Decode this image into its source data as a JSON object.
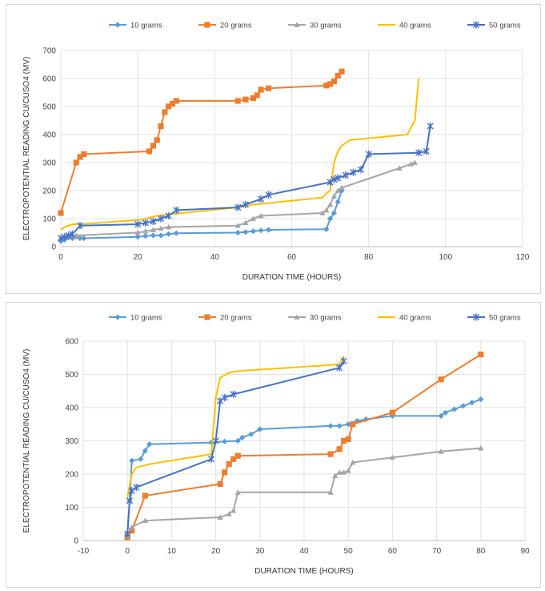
{
  "colors": {
    "10": "#5b9bd5",
    "20": "#ed7d31",
    "30": "#a5a5a5",
    "40": "#ffc000",
    "50": "#4472c4"
  },
  "chart_data": [
    {
      "type": "line",
      "xlabel": "DURATION TIME (HOURS)",
      "ylabel": "ELECTROPOTENTIAL READING CU/CUSO4 (MV)",
      "xlim": [
        0,
        120
      ],
      "ylim": [
        0,
        700
      ],
      "xticks": [
        0,
        20,
        40,
        60,
        80,
        100,
        120
      ],
      "yticks": [
        0,
        100,
        200,
        300,
        400,
        500,
        600,
        700
      ],
      "grid": true,
      "legend": "top",
      "series": [
        {
          "name": "10 grams",
          "marker": "diamond",
          "points": [
            [
              0,
              20
            ],
            [
              1,
              25
            ],
            [
              3,
              30
            ],
            [
              5,
              30
            ],
            [
              6,
              30
            ],
            [
              20,
              35
            ],
            [
              22,
              38
            ],
            [
              24,
              40
            ],
            [
              26,
              40
            ],
            [
              28,
              45
            ],
            [
              30,
              48
            ],
            [
              46,
              50
            ],
            [
              48,
              52
            ],
            [
              50,
              55
            ],
            [
              52,
              58
            ],
            [
              54,
              60
            ],
            [
              69,
              62
            ],
            [
              70,
              100
            ],
            [
              71,
              120
            ],
            [
              72,
              160
            ],
            [
              73,
              200
            ]
          ]
        },
        {
          "name": "20 grams",
          "marker": "square",
          "points": [
            [
              0,
              120
            ],
            [
              4,
              300
            ],
            [
              5,
              320
            ],
            [
              6,
              330
            ],
            [
              23,
              340
            ],
            [
              24,
              360
            ],
            [
              25,
              380
            ],
            [
              26,
              430
            ],
            [
              27,
              480
            ],
            [
              28,
              500
            ],
            [
              29,
              510
            ],
            [
              30,
              520
            ],
            [
              46,
              520
            ],
            [
              48,
              525
            ],
            [
              50,
              530
            ],
            [
              51,
              540
            ],
            [
              52,
              560
            ],
            [
              54,
              565
            ],
            [
              69,
              575
            ],
            [
              70,
              580
            ],
            [
              71,
              590
            ],
            [
              72,
              610
            ],
            [
              73,
              625
            ]
          ]
        },
        {
          "name": "30 grams",
          "marker": "triangle",
          "points": [
            [
              0,
              30
            ],
            [
              2,
              35
            ],
            [
              4,
              40
            ],
            [
              20,
              50
            ],
            [
              22,
              55
            ],
            [
              24,
              60
            ],
            [
              26,
              65
            ],
            [
              28,
              70
            ],
            [
              46,
              75
            ],
            [
              48,
              85
            ],
            [
              50,
              100
            ],
            [
              52,
              110
            ],
            [
              68,
              120
            ],
            [
              69,
              130
            ],
            [
              70,
              150
            ],
            [
              71,
              180
            ],
            [
              72,
              200
            ],
            [
              73,
              210
            ],
            [
              88,
              280
            ],
            [
              91,
              295
            ],
            [
              92,
              300
            ]
          ]
        },
        {
          "name": "40 grams",
          "marker": "none",
          "points": [
            [
              0,
              60
            ],
            [
              1,
              70
            ],
            [
              3,
              80
            ],
            [
              5,
              80
            ],
            [
              20,
              95
            ],
            [
              22,
              100
            ],
            [
              25,
              110
            ],
            [
              28,
              115
            ],
            [
              46,
              140
            ],
            [
              50,
              150
            ],
            [
              68,
              175
            ],
            [
              69,
              190
            ],
            [
              70,
              200
            ],
            [
              71,
              300
            ],
            [
              72,
              340
            ],
            [
              73,
              360
            ],
            [
              75,
              380
            ],
            [
              90,
              400
            ],
            [
              92,
              450
            ],
            [
              93,
              600
            ]
          ]
        },
        {
          "name": "50 grams",
          "marker": "star",
          "points": [
            [
              0,
              30
            ],
            [
              1,
              35
            ],
            [
              2,
              40
            ],
            [
              3,
              45
            ],
            [
              5,
              75
            ],
            [
              20,
              80
            ],
            [
              22,
              85
            ],
            [
              24,
              90
            ],
            [
              26,
              100
            ],
            [
              28,
              110
            ],
            [
              30,
              130
            ],
            [
              46,
              140
            ],
            [
              48,
              150
            ],
            [
              52,
              170
            ],
            [
              54,
              185
            ],
            [
              70,
              230
            ],
            [
              71,
              240
            ],
            [
              72,
              245
            ],
            [
              74,
              255
            ],
            [
              76,
              265
            ],
            [
              78,
              275
            ],
            [
              80,
              330
            ],
            [
              93,
              335
            ],
            [
              95,
              340
            ],
            [
              96,
              430
            ]
          ]
        }
      ]
    },
    {
      "type": "line",
      "xlabel": "DURATION TIME (HOURS)",
      "ylabel": "ELECTROPOTENTIAL READING CU/CUSO4 (MV)",
      "xlim": [
        -10,
        90
      ],
      "ylim": [
        0,
        600
      ],
      "xticks": [
        -10,
        0,
        10,
        20,
        30,
        40,
        50,
        60,
        70,
        80,
        90
      ],
      "yticks": [
        0,
        100,
        200,
        300,
        400,
        500,
        600
      ],
      "grid": true,
      "legend": "top",
      "series": [
        {
          "name": "10 grams",
          "marker": "diamond",
          "points": [
            [
              0,
              20
            ],
            [
              0.5,
              120
            ],
            [
              1,
              240
            ],
            [
              3,
              245
            ],
            [
              4,
              270
            ],
            [
              5,
              290
            ],
            [
              19,
              295
            ],
            [
              22,
              298
            ],
            [
              25,
              300
            ],
            [
              26,
              310
            ],
            [
              28,
              320
            ],
            [
              30,
              335
            ],
            [
              46,
              345
            ],
            [
              48,
              345
            ],
            [
              50,
              350
            ],
            [
              52,
              360
            ],
            [
              54,
              365
            ],
            [
              60,
              375
            ],
            [
              71,
              375
            ],
            [
              72,
              385
            ],
            [
              74,
              395
            ],
            [
              76,
              405
            ],
            [
              78,
              415
            ],
            [
              80,
              425
            ]
          ]
        },
        {
          "name": "20 grams",
          "marker": "square",
          "points": [
            [
              0,
              10
            ],
            [
              1,
              30
            ],
            [
              4,
              135
            ],
            [
              21,
              170
            ],
            [
              22,
              205
            ],
            [
              23,
              230
            ],
            [
              24,
              245
            ],
            [
              25,
              255
            ],
            [
              46,
              260
            ],
            [
              48,
              275
            ],
            [
              49,
              300
            ],
            [
              50,
              305
            ],
            [
              51,
              350
            ],
            [
              60,
              385
            ],
            [
              71,
              485
            ],
            [
              80,
              560
            ]
          ]
        },
        {
          "name": "30 grams",
          "marker": "triangle",
          "points": [
            [
              0,
              15
            ],
            [
              1,
              40
            ],
            [
              4,
              60
            ],
            [
              21,
              70
            ],
            [
              23,
              80
            ],
            [
              24,
              90
            ],
            [
              25,
              145
            ],
            [
              46,
              145
            ],
            [
              47,
              195
            ],
            [
              48,
              205
            ],
            [
              49,
              205
            ],
            [
              50,
              210
            ],
            [
              51,
              235
            ],
            [
              60,
              250
            ],
            [
              71,
              268
            ],
            [
              80,
              278
            ]
          ]
        },
        {
          "name": "40 grams",
          "marker": "none",
          "points": [
            [
              0,
              130
            ],
            [
              1,
              200
            ],
            [
              2,
              220
            ],
            [
              5,
              230
            ],
            [
              19,
              260
            ],
            [
              20,
              430
            ],
            [
              21,
              490
            ],
            [
              23,
              505
            ],
            [
              25,
              510
            ],
            [
              48,
              530
            ],
            [
              49,
              555
            ]
          ]
        },
        {
          "name": "50 grams",
          "marker": "star",
          "points": [
            [
              0,
              20
            ],
            [
              0.5,
              120
            ],
            [
              1,
              150
            ],
            [
              2,
              160
            ],
            [
              19,
              245
            ],
            [
              20,
              300
            ],
            [
              21,
              420
            ],
            [
              22,
              430
            ],
            [
              24,
              440
            ],
            [
              48,
              520
            ],
            [
              49,
              540
            ]
          ]
        }
      ]
    }
  ]
}
